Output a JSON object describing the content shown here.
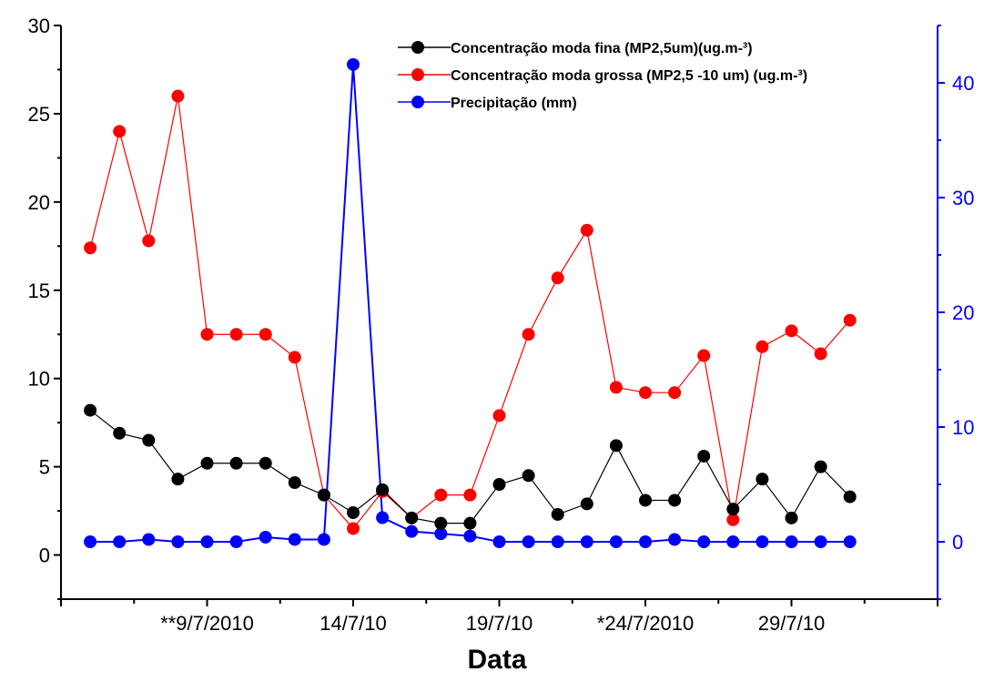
{
  "chart_data": {
    "type": "line",
    "xlabel": "Data",
    "x_tick_labels": [
      "**9/7/2010",
      "14/7/10",
      "19/7/10",
      "*24/7/2010",
      "29/7/10"
    ],
    "x_tick_positions": [
      5,
      10,
      15,
      20,
      25
    ],
    "xlim": [
      0,
      30
    ],
    "x": [
      1,
      2,
      3,
      4,
      5,
      6,
      7,
      8,
      9,
      10,
      11,
      12,
      13,
      14,
      15,
      16,
      17,
      18,
      19,
      20,
      21,
      22,
      23,
      24,
      25,
      26,
      27
    ],
    "y_left": {
      "lim": [
        -2.5,
        30
      ],
      "ticks": [
        0,
        5,
        10,
        15,
        20,
        25,
        30
      ],
      "color": "#000000"
    },
    "y_right": {
      "lim": [
        -5,
        45
      ],
      "ticks": [
        0,
        10,
        20,
        30,
        40
      ],
      "color": "#0000ff"
    },
    "legend_position": "top-right",
    "series": [
      {
        "name": "Concentração moda fina (MP2,5um)(ug.m-³)",
        "axis": "left",
        "color": "#000000",
        "values": [
          8.2,
          6.9,
          6.5,
          4.3,
          5.2,
          5.2,
          5.2,
          4.1,
          3.4,
          2.4,
          3.7,
          2.1,
          1.8,
          1.8,
          4.0,
          4.5,
          2.3,
          2.9,
          6.2,
          3.1,
          3.1,
          5.6,
          2.6,
          4.3,
          2.1,
          5.0,
          3.3
        ]
      },
      {
        "name": "Concentração moda grossa (MP2,5 -10 um) (ug.m-³)",
        "axis": "left",
        "color": "#ff0000",
        "values": [
          17.4,
          24.0,
          17.8,
          26.0,
          12.5,
          12.5,
          12.5,
          11.2,
          3.4,
          1.5,
          3.6,
          2.1,
          3.4,
          3.4,
          7.9,
          12.5,
          15.7,
          18.4,
          9.5,
          9.2,
          9.2,
          11.3,
          2.0,
          11.8,
          12.7,
          11.4,
          13.3
        ]
      },
      {
        "name": "Precipitação (mm)",
        "axis": "right",
        "color": "#0000ff",
        "values": [
          0,
          0,
          0.2,
          0,
          0,
          0,
          0.4,
          0.2,
          0.2,
          41.6,
          2.1,
          0.9,
          0.7,
          0.5,
          0,
          0,
          0,
          0,
          0,
          0,
          0.2,
          0,
          0,
          0,
          0,
          0,
          0
        ]
      }
    ]
  }
}
